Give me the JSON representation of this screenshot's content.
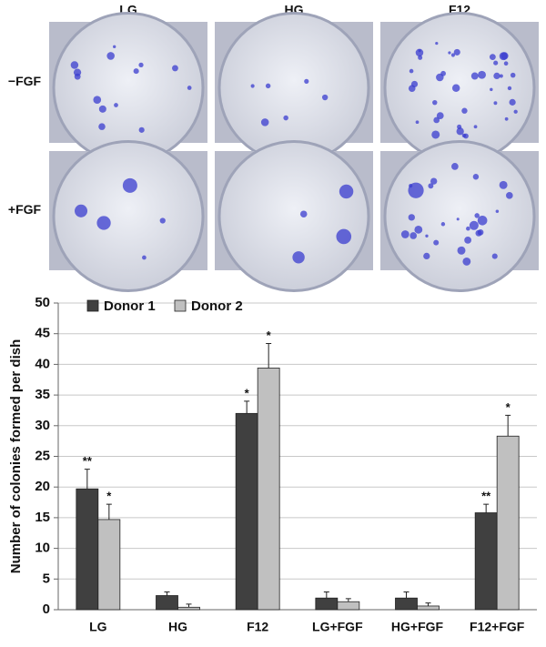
{
  "panels": {
    "columns": [
      "LG",
      "HG",
      "F12"
    ],
    "rows": [
      "−FGF",
      "+FGF"
    ]
  },
  "chart_data": {
    "type": "bar",
    "y_label": "Number of colonies formed per dish",
    "categories": [
      "LG",
      "HG",
      "F12",
      "LG+FGF",
      "HG+FGF",
      "F12+FGF"
    ],
    "series": [
      {
        "name": "Donor 1",
        "color": "#404040",
        "values": [
          19.7,
          2.3,
          32,
          1.9,
          1.9,
          15.8
        ],
        "errors": [
          3.2,
          0.6,
          2.0,
          1.0,
          1.0,
          1.4
        ],
        "annotations": [
          "**",
          null,
          "*",
          null,
          null,
          "**"
        ]
      },
      {
        "name": "Donor 2",
        "color": "#c0c0c0",
        "values": [
          14.7,
          0.4,
          39.4,
          1.3,
          0.6,
          28.3
        ],
        "errors": [
          2.5,
          0.5,
          4.0,
          0.5,
          0.5,
          3.4
        ],
        "annotations": [
          "*",
          null,
          "*",
          null,
          null,
          "*"
        ]
      }
    ],
    "ylim": [
      0,
      50
    ],
    "yticks": [
      0,
      5,
      10,
      15,
      20,
      25,
      30,
      35,
      40,
      45,
      50
    ],
    "grid": true,
    "legend": "upper left"
  }
}
